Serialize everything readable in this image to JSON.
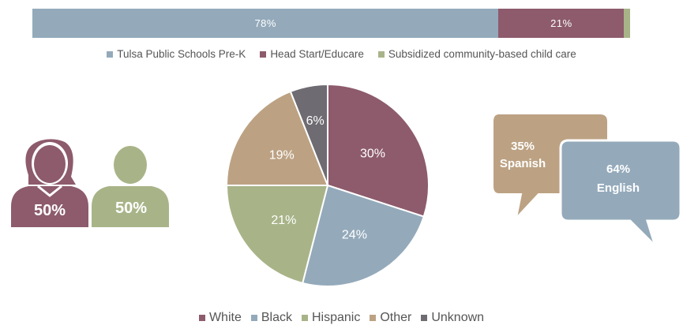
{
  "colors": {
    "plum": "#8d5b6c",
    "blue": "#94aabb",
    "green": "#a8b488",
    "tan": "#bca283",
    "gray": "#6f6b72"
  },
  "chart_data": [
    {
      "type": "bar",
      "orientation": "horizontal-stacked",
      "series": [
        {
          "name": "Tulsa Public Schools Pre-K",
          "value": 78,
          "label": "78%",
          "color": "#94aabb"
        },
        {
          "name": "Head Start/Educare",
          "value": 21,
          "label": "21%",
          "color": "#8d5b6c"
        },
        {
          "name": "Subsidized community-based child care",
          "value": 1,
          "label": "",
          "color": "#a8b488"
        }
      ]
    },
    {
      "type": "pie",
      "slices": [
        {
          "name": "White",
          "value": 30,
          "label": "30%",
          "color": "#8d5b6c"
        },
        {
          "name": "Black",
          "value": 24,
          "label": "24%",
          "color": "#94aabb"
        },
        {
          "name": "Hispanic",
          "value": 21,
          "label": "21%",
          "color": "#a8b488"
        },
        {
          "name": "Other",
          "value": 19,
          "label": "19%",
          "color": "#bca283"
        },
        {
          "name": "Unknown",
          "value": 6,
          "label": "6%",
          "color": "#6f6b72"
        }
      ]
    }
  ],
  "gender": {
    "female": {
      "label": "50%",
      "icon": "girl-icon"
    },
    "male": {
      "label": "50%",
      "icon": "boy-icon"
    }
  },
  "language": {
    "spanish": {
      "pct": "35%",
      "name": "Spanish"
    },
    "english": {
      "pct": "64%",
      "name": "English"
    }
  }
}
